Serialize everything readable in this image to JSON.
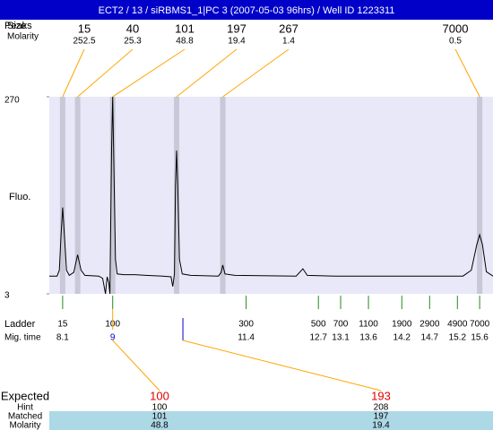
{
  "chart_data": {
    "type": "line",
    "title": "ECT2 / 13 / siRBMS1_1|PC 3 (2007-05-03 96hrs) / Well ID 1223311",
    "y_label": "Fluo.",
    "ylim": [
      3,
      270
    ],
    "yticks": [
      3,
      270
    ],
    "xlim": [
      7.86,
      15.84
    ],
    "color": "#000000",
    "background": "#e8e8f8",
    "x": [
      7.86,
      8.0,
      8.04,
      8.07,
      8.1,
      8.13,
      8.17,
      8.22,
      8.3,
      8.37,
      8.43,
      8.5,
      8.75,
      8.82,
      8.87,
      8.9,
      8.93,
      8.95,
      8.98,
      9.0,
      9.02,
      9.05,
      9.08,
      9.2,
      9.4,
      9.6,
      9.9,
      10.05,
      10.08,
      10.11,
      10.13,
      10.15,
      10.17,
      10.2,
      10.25,
      10.4,
      10.9,
      10.95,
      10.98,
      11.02,
      11.2,
      12.3,
      12.42,
      12.5,
      13.0,
      15.3,
      15.45,
      15.55,
      15.6,
      15.65,
      15.72,
      15.84
    ],
    "values": [
      27,
      27,
      35,
      80,
      120,
      85,
      35,
      28,
      32,
      56,
      35,
      28,
      27,
      24,
      3,
      26,
      18,
      3,
      200,
      270,
      180,
      50,
      30,
      29,
      29,
      28,
      27,
      26,
      13,
      30,
      150,
      197,
      150,
      50,
      30,
      28,
      27,
      32,
      42,
      30,
      28,
      27,
      37,
      28,
      27,
      27,
      35,
      70,
      83,
      70,
      33,
      27
    ],
    "peaks": {
      "labels": [
        "Peaks",
        "Size",
        "Molarity"
      ],
      "sizes": [
        15,
        40,
        101,
        197,
        267,
        7000
      ],
      "molarity": [
        252.5,
        25.3,
        48.8,
        19.4,
        1.4,
        0.5
      ],
      "mig_times": [
        8.1,
        8.37,
        9.0,
        10.15,
        10.98,
        15.6
      ]
    },
    "ladder": {
      "label": "Ladder",
      "time_label": "Mig. time",
      "sizes": [
        15,
        100,
        300,
        500,
        700,
        1100,
        1900,
        2900,
        4900,
        7000
      ],
      "mig_times": [
        8.1,
        9,
        11.4,
        12.7,
        13.1,
        13.6,
        14.2,
        14.7,
        15.2,
        15.6
      ]
    },
    "expected": {
      "labels": [
        "Expected",
        "Hint",
        "Matched",
        "Molarity"
      ],
      "expected": [
        100,
        193
      ],
      "hint": [
        100,
        208
      ],
      "matched": [
        101,
        197
      ],
      "molarity": [
        48.8,
        19.4
      ]
    }
  }
}
